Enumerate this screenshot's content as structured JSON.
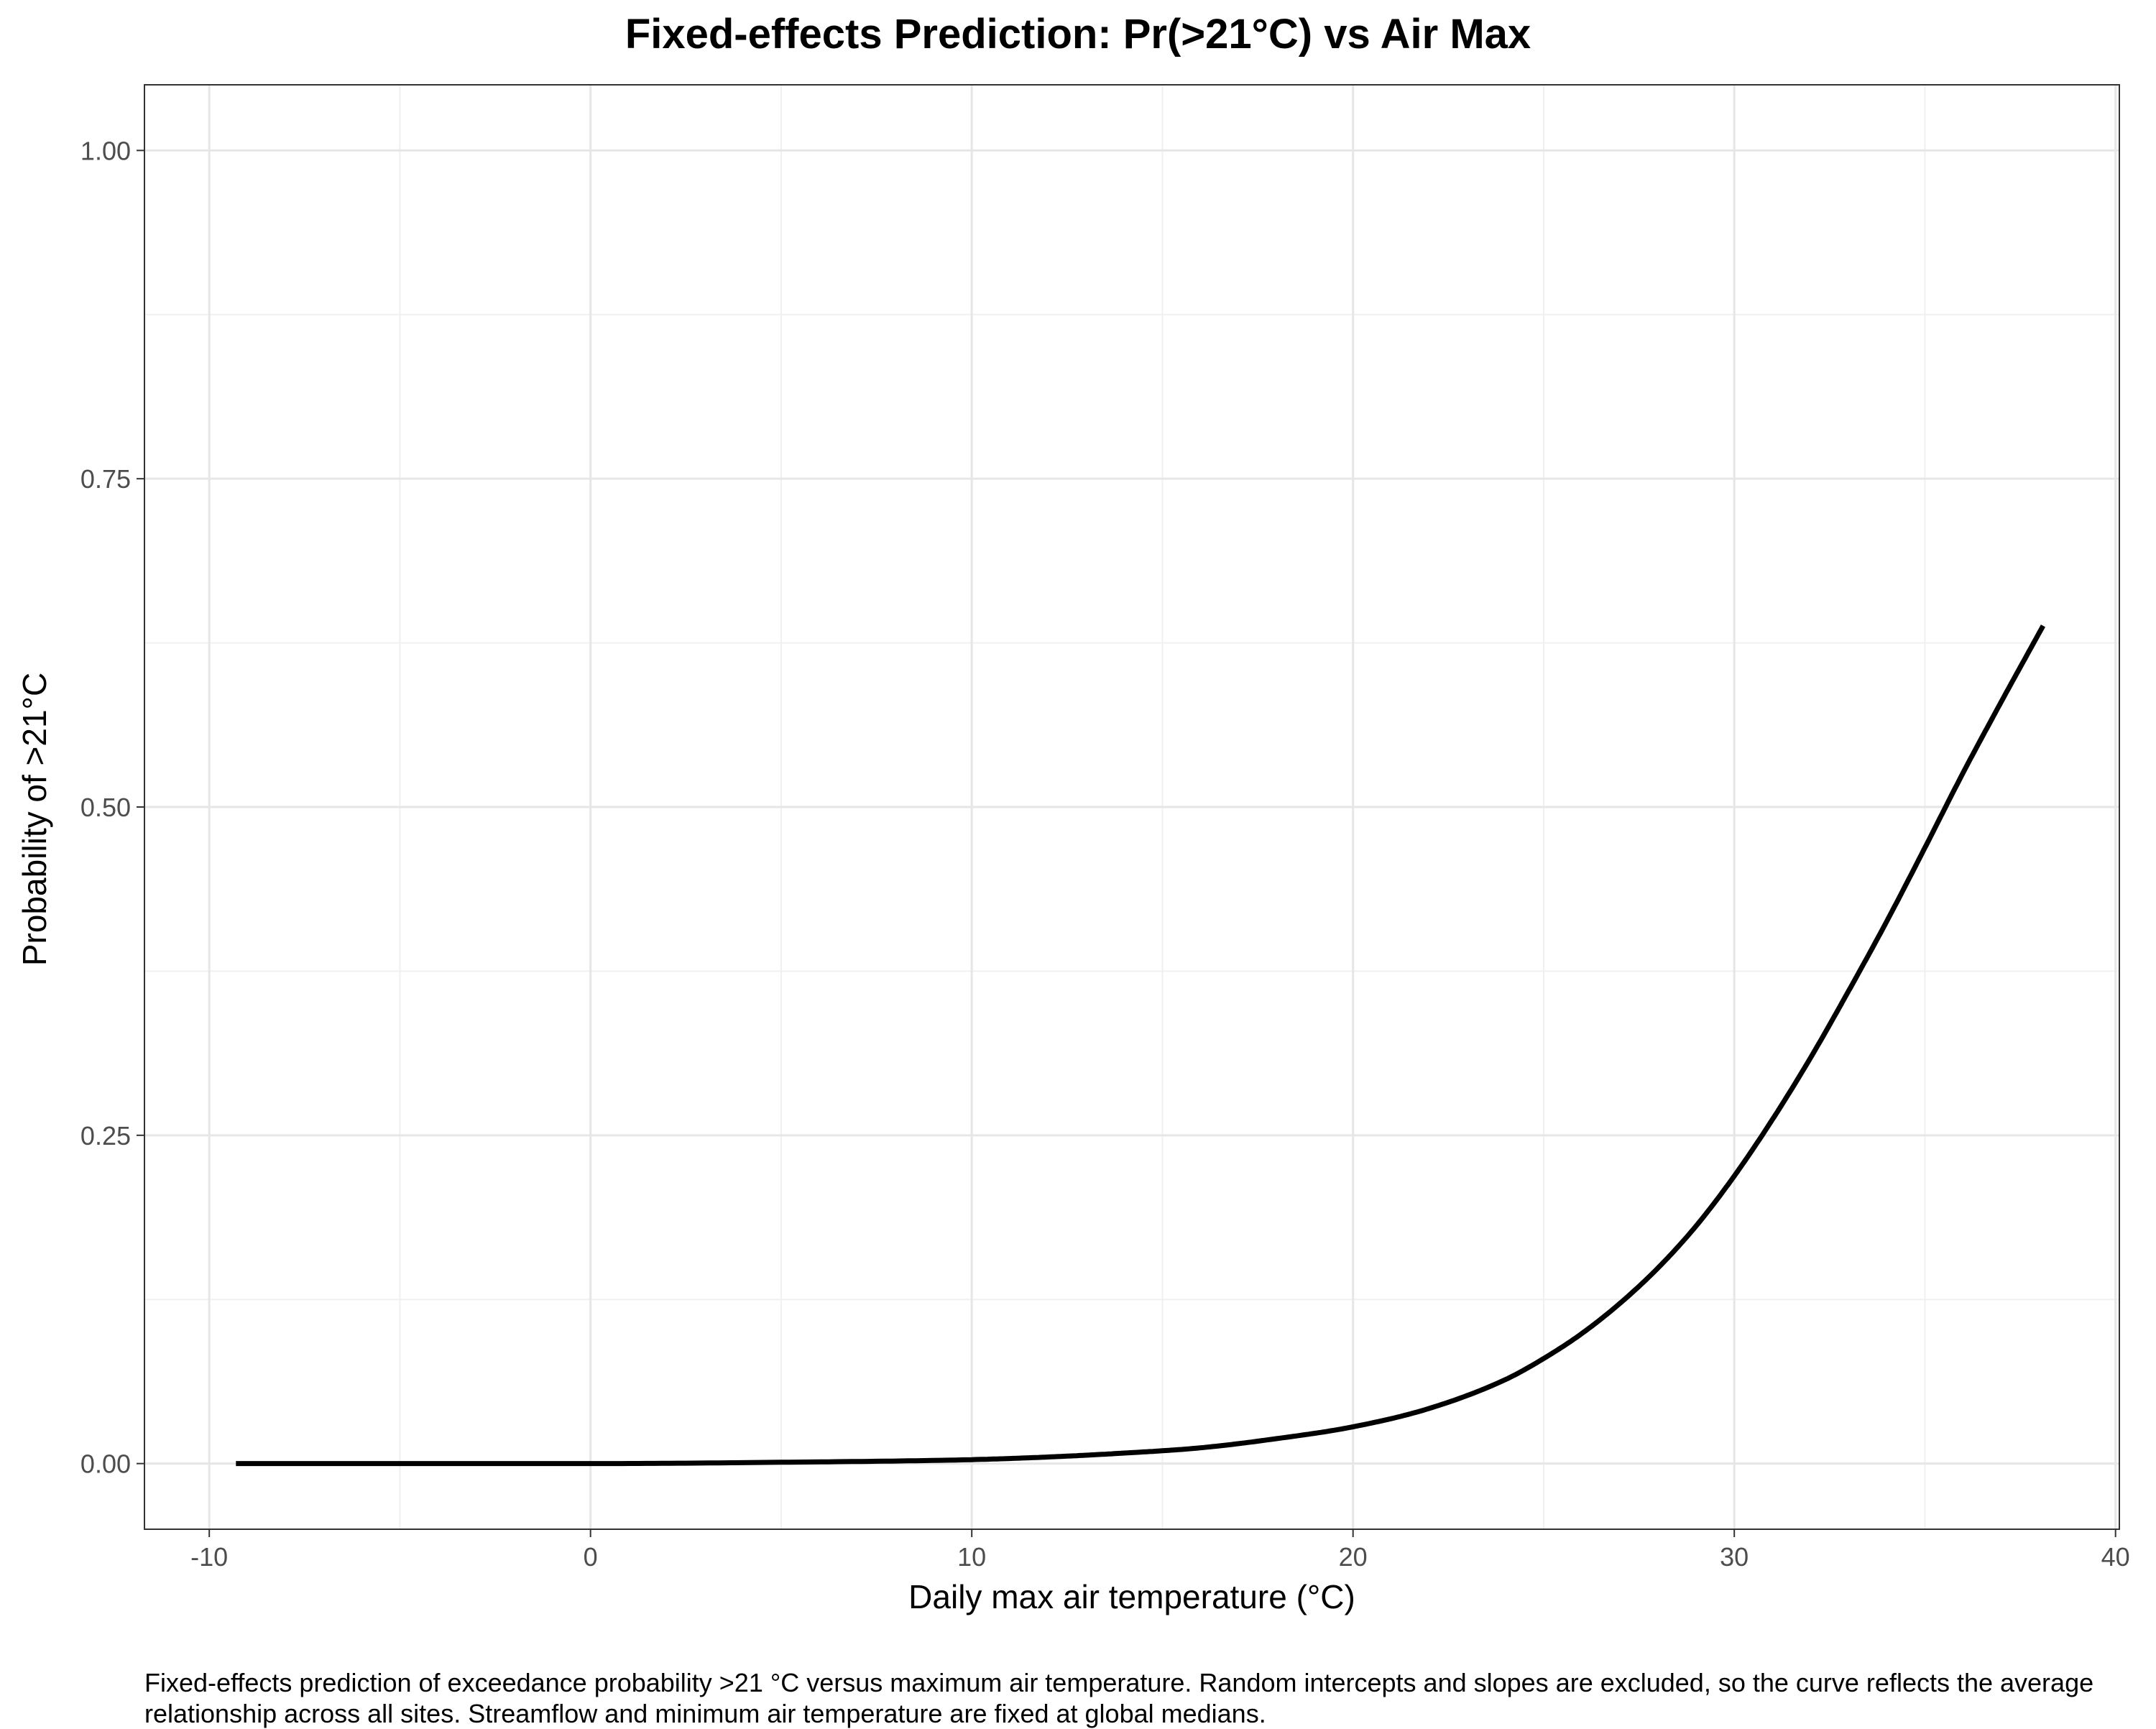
{
  "chart_data": {
    "type": "line",
    "title": "Fixed-effects Prediction: Pr(>21°C) vs Air Max",
    "xlabel": "Daily max air temperature (°C)",
    "ylabel": "Probability of >21°C",
    "caption": "Fixed-effects prediction of exceedance probability >21 °C versus maximum air temperature. Random intercepts and slopes are excluded, so the curve reflects the average relationship across all sites. Streamflow and minimum air temperature are fixed at global medians.",
    "xlim": [
      -11.7,
      40.1
    ],
    "ylim": [
      -0.05,
      1.05
    ],
    "x_ticks": [
      -10,
      0,
      10,
      20,
      30,
      40
    ],
    "x_tick_labels": [
      "-10",
      "0",
      "10",
      "20",
      "30",
      "40"
    ],
    "y_ticks": [
      0,
      0.25,
      0.5,
      0.75,
      1.0
    ],
    "y_tick_labels": [
      "0.00",
      "0.25",
      "0.50",
      "0.75",
      "1.00"
    ],
    "grid": true,
    "line_color": "#000000",
    "series": [
      {
        "x": [
          -9.3,
          -5,
          0,
          5,
          10,
          12,
          14,
          16,
          18,
          20,
          22,
          24,
          25,
          26,
          27,
          28,
          29,
          30,
          31,
          32,
          33,
          34,
          35,
          36,
          37,
          38.1
        ],
        "y": [
          0.0,
          0.0,
          0.0,
          0.001,
          0.003,
          0.005,
          0.008,
          0.012,
          0.019,
          0.028,
          0.042,
          0.064,
          0.08,
          0.099,
          0.122,
          0.149,
          0.181,
          0.219,
          0.262,
          0.309,
          0.36,
          0.413,
          0.469,
          0.526,
          0.58,
          0.638
        ]
      }
    ]
  }
}
